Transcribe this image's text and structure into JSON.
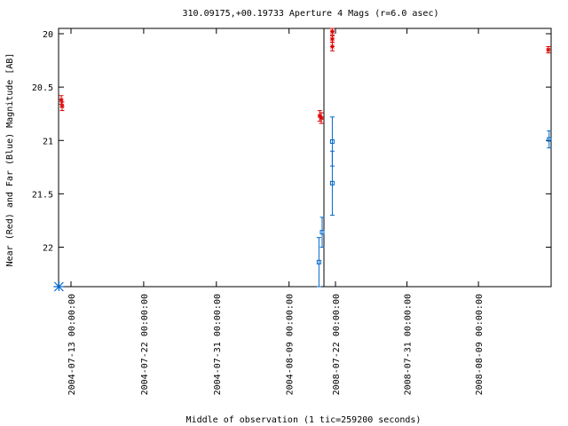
{
  "chart_data": {
    "type": "scatter",
    "title": "310.09175,+00.19733   Aperture 4 Mags (r=6.0 asec)",
    "xlabel": "Middle of observation (1 tic=259200 seconds)",
    "ylabel": "Near (Red) and Far (Blue) Magnitude [AB]",
    "ylim": [
      22.37,
      19.95
    ],
    "y_ticks": [
      20,
      20.5,
      21,
      21.5,
      22
    ],
    "y_tick_labels": [
      "20",
      "20.5",
      "21",
      "21.5",
      "22"
    ],
    "x_segments": [
      {
        "ticks": [
          {
            "day": 0,
            "label": "2004-07-13 00:00:00"
          },
          {
            "day": 9,
            "label": "2004-07-22 00:00:00"
          },
          {
            "day": 18,
            "label": "2004-07-31 00:00:00"
          },
          {
            "day": 27,
            "label": "2004-08-09 00:00:00"
          }
        ]
      },
      {
        "ticks": [
          {
            "day": 0,
            "label": "2008-07-22 00:00:00"
          },
          {
            "day": 9,
            "label": "2008-07-31 00:00:00"
          },
          {
            "day": 18,
            "label": "2008-08-09 00:00:00"
          }
        ]
      }
    ],
    "series": [
      {
        "color": "#dd0000",
        "marker": "asterisk",
        "points": [
          {
            "segment": 0,
            "day": -1.2,
            "y": 20.62,
            "err": 0.04
          },
          {
            "segment": 0,
            "day": -1.1,
            "y": 20.68,
            "err": 0.04
          },
          {
            "segment": 0,
            "day": 30.8,
            "y": 20.77,
            "err": 0.05
          },
          {
            "segment": 0,
            "day": 31.0,
            "y": 20.79,
            "err": 0.05
          },
          {
            "segment": 1,
            "day": -0.4,
            "y": 19.98,
            "err": 0.03
          },
          {
            "segment": 1,
            "day": -0.4,
            "y": 20.05,
            "err": 0.03
          },
          {
            "segment": 1,
            "day": -0.4,
            "y": 20.12,
            "err": 0.04
          },
          {
            "segment": 1,
            "day": 26.8,
            "y": 20.15,
            "err": 0.03
          }
        ]
      },
      {
        "color": "#0066cc",
        "marker": "square",
        "points": [
          {
            "segment": 0,
            "day": 30.7,
            "y": 22.14,
            "err": 0.23
          },
          {
            "segment": 0,
            "day": 31.1,
            "y": 21.86,
            "err": 0.14
          },
          {
            "segment": 1,
            "day": -0.4,
            "y": 21.01,
            "err": 0.23
          },
          {
            "segment": 1,
            "day": -0.4,
            "y": 21.4,
            "err": 0.3
          },
          {
            "segment": 1,
            "day": 26.9,
            "y": 20.99,
            "err": 0.08
          }
        ]
      }
    ],
    "upper_limits": [
      {
        "segment": 0,
        "day": -1.5,
        "color": "#0066cc"
      }
    ]
  }
}
